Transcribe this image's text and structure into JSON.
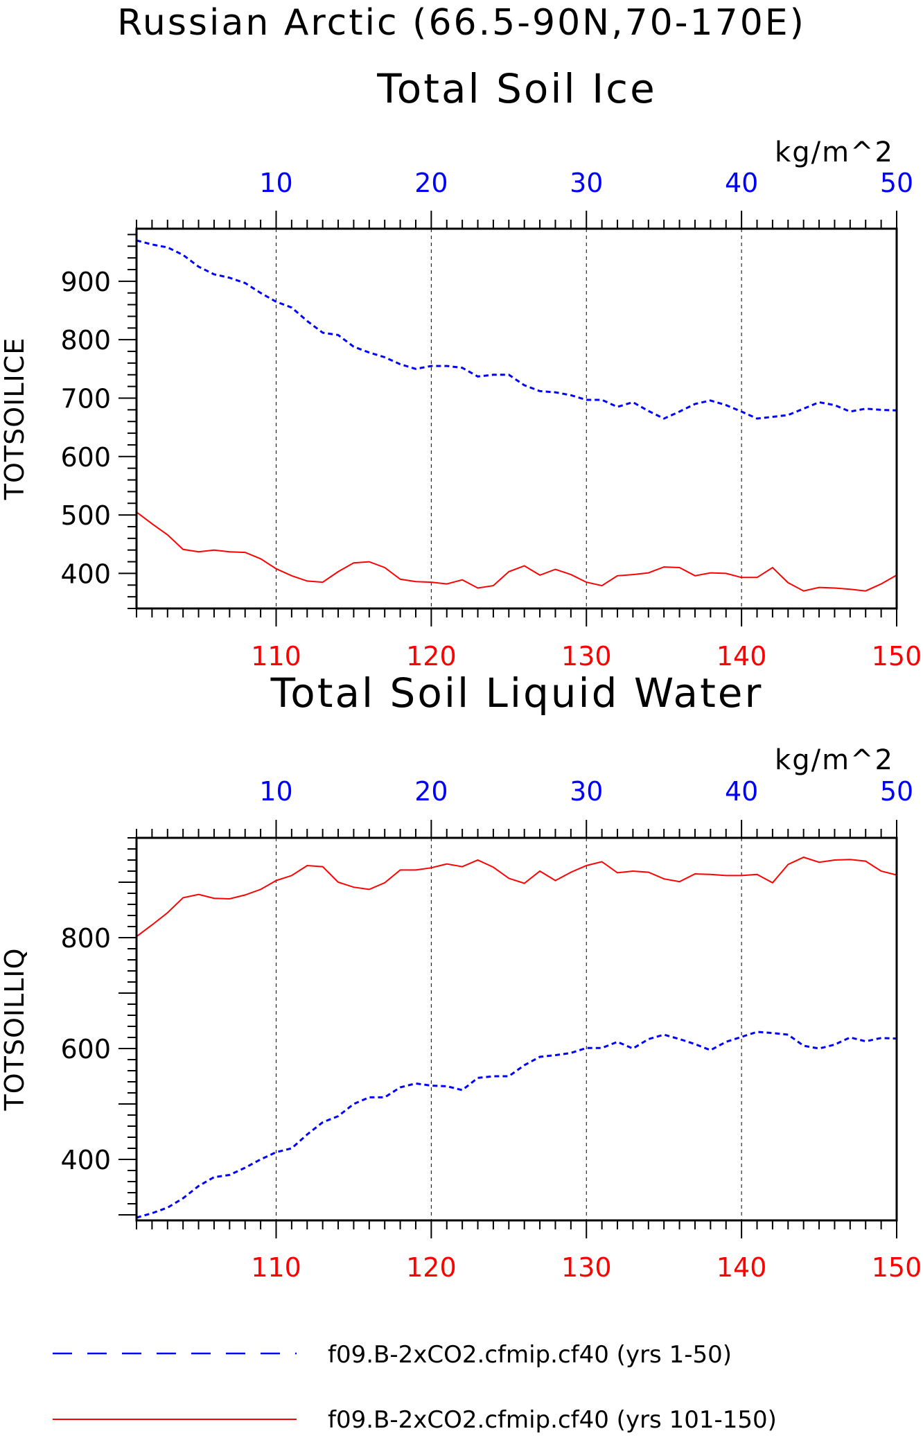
{
  "title": "Russian Arctic (66.5-90N,70-170E)",
  "colors": {
    "series1": "#0000ff",
    "series2": "#ff0000",
    "axis": "#000000",
    "grid": "#000000"
  },
  "legend": {
    "items": [
      {
        "label": "f09.B-2xCO2.cfmip.cf40 (yrs 1-50)",
        "color": "#0000ff",
        "style": "dashed"
      },
      {
        "label": "f09.B-2xCO2.cfmip.cf40 (yrs 101-150)",
        "color": "#ff0000",
        "style": "solid"
      }
    ]
  },
  "chart_data": [
    {
      "type": "line",
      "title": "Total Soil Ice",
      "ylabel": "TOTSOILICE",
      "units": "kg/m^2",
      "ylim": [
        340,
        990
      ],
      "yticks": [
        400,
        500,
        600,
        700,
        800,
        900
      ],
      "x_top": {
        "range": [
          1,
          50
        ],
        "ticks": [
          10,
          20,
          30,
          40,
          50
        ],
        "color": "#0000ff"
      },
      "x_bottom": {
        "range": [
          101,
          150
        ],
        "ticks": [
          110,
          120,
          130,
          140,
          150
        ],
        "color": "#ff0000"
      },
      "grid": "vertical dashed at major ticks",
      "series": [
        {
          "axis": "top",
          "color": "#0000ff",
          "style": "dashed",
          "values": [
            970,
            963,
            958,
            945,
            925,
            912,
            906,
            897,
            880,
            865,
            855,
            832,
            812,
            808,
            788,
            778,
            770,
            758,
            750,
            755,
            755,
            752,
            737,
            740,
            740,
            722,
            712,
            710,
            705,
            697,
            697,
            685,
            693,
            678,
            665,
            677,
            690,
            696,
            688,
            677,
            665,
            668,
            671,
            682,
            693,
            688,
            677,
            682,
            680,
            679
          ]
        },
        {
          "axis": "bottom",
          "color": "#ff0000",
          "style": "solid",
          "values": [
            505,
            485,
            466,
            441,
            437,
            440,
            437,
            436,
            425,
            408,
            396,
            387,
            385,
            403,
            418,
            420,
            410,
            390,
            386,
            385,
            382,
            389,
            375,
            379,
            403,
            413,
            397,
            407,
            398,
            385,
            379,
            396,
            398,
            401,
            411,
            410,
            396,
            401,
            400,
            393,
            393,
            410,
            384,
            370,
            376,
            375,
            373,
            370,
            382,
            397
          ]
        }
      ]
    },
    {
      "type": "line",
      "title": "Total Soil Liquid Water",
      "ylabel": "TOTSOILLIQ",
      "units": "kg/m^2",
      "ylim": [
        290,
        980
      ],
      "yticks": [
        400,
        600,
        800
      ],
      "x_top": {
        "range": [
          1,
          50
        ],
        "ticks": [
          10,
          20,
          30,
          40,
          50
        ],
        "color": "#0000ff"
      },
      "x_bottom": {
        "range": [
          101,
          150
        ],
        "ticks": [
          110,
          120,
          130,
          140,
          150
        ],
        "color": "#ff0000"
      },
      "grid": "vertical dashed at major ticks",
      "series": [
        {
          "axis": "top",
          "color": "#0000ff",
          "style": "dashed",
          "values": [
            295,
            303,
            313,
            330,
            352,
            368,
            372,
            385,
            400,
            413,
            420,
            445,
            467,
            478,
            500,
            512,
            512,
            530,
            537,
            533,
            532,
            525,
            547,
            550,
            550,
            570,
            585,
            588,
            592,
            601,
            601,
            612,
            600,
            617,
            625,
            617,
            608,
            597,
            612,
            621,
            630,
            628,
            625,
            605,
            600,
            607,
            620,
            613,
            619,
            618
          ]
        },
        {
          "axis": "bottom",
          "color": "#ff0000",
          "style": "solid",
          "values": [
            802,
            823,
            845,
            872,
            878,
            871,
            870,
            877,
            887,
            903,
            912,
            930,
            928,
            900,
            891,
            887,
            899,
            922,
            922,
            926,
            933,
            928,
            940,
            927,
            907,
            898,
            920,
            903,
            918,
            930,
            937,
            917,
            920,
            918,
            906,
            901,
            915,
            914,
            912,
            912,
            914,
            899,
            932,
            945,
            936,
            940,
            941,
            938,
            920,
            913
          ]
        }
      ]
    }
  ]
}
